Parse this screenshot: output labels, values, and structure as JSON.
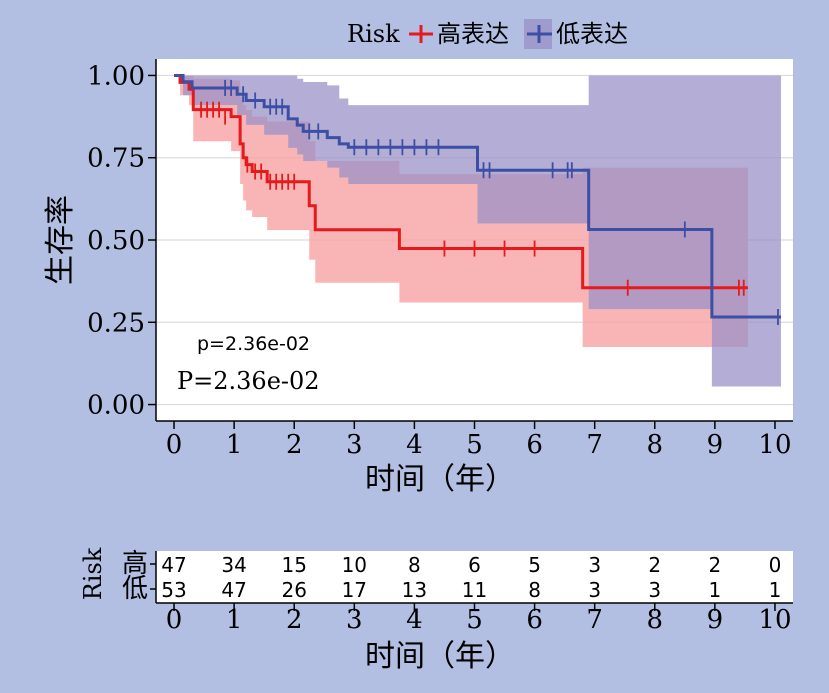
{
  "chart_data": {
    "type": "line",
    "subtype": "kaplan-meier",
    "legend": {
      "title": "Risk",
      "position": "top",
      "entries": [
        {
          "label": "高表达",
          "color": "#e41a1c"
        },
        {
          "label": "低表达",
          "color": "#3c4fa4"
        }
      ]
    },
    "ylabel": "生存率",
    "xlabel": "时间（年）",
    "xlim": [
      -0.3,
      10.3
    ],
    "ylim": [
      -0.05,
      1.05
    ],
    "xticks": [
      0,
      1,
      2,
      3,
      4,
      5,
      6,
      7,
      8,
      9,
      10
    ],
    "xtick_labels": [
      "0",
      "1",
      "2",
      "3",
      "4",
      "5",
      "6",
      "7",
      "8",
      "9",
      "10"
    ],
    "yticks": [
      0,
      0.25,
      0.5,
      0.75,
      1.0
    ],
    "ytick_labels": [
      "0.00",
      "0.25",
      "0.50",
      "0.75",
      "1.00"
    ],
    "grid": true,
    "annotations": [
      "p=2.36e-02",
      "P=2.36e-02"
    ],
    "series": [
      {
        "name": "高表达",
        "color": "#e41a1c",
        "fill": "#f8a8a8",
        "steps": [
          [
            0,
            1.0
          ],
          [
            0.1,
            0.979
          ],
          [
            0.25,
            0.958
          ],
          [
            0.32,
            0.896
          ],
          [
            0.95,
            0.875
          ],
          [
            1.1,
            0.792
          ],
          [
            1.15,
            0.75
          ],
          [
            1.2,
            0.729
          ],
          [
            1.3,
            0.708
          ],
          [
            1.55,
            0.677
          ],
          [
            2.25,
            0.604
          ],
          [
            2.35,
            0.531
          ],
          [
            3.75,
            0.474
          ],
          [
            6.8,
            0.355
          ],
          [
            9.55,
            0.355
          ]
        ],
        "upper": [
          [
            0,
            1.0
          ],
          [
            0.1,
            1.0
          ],
          [
            0.25,
            1.0
          ],
          [
            0.32,
            0.99
          ],
          [
            0.95,
            0.985
          ],
          [
            1.1,
            0.935
          ],
          [
            1.15,
            0.91
          ],
          [
            1.2,
            0.895
          ],
          [
            1.3,
            0.875
          ],
          [
            1.55,
            0.86
          ],
          [
            2.25,
            0.8
          ],
          [
            2.35,
            0.74
          ],
          [
            3.75,
            0.7
          ],
          [
            6.8,
            0.72
          ],
          [
            9.55,
            0.72
          ]
        ],
        "lower": [
          [
            0,
            1.0
          ],
          [
            0.1,
            0.94
          ],
          [
            0.25,
            0.91
          ],
          [
            0.32,
            0.8
          ],
          [
            0.95,
            0.77
          ],
          [
            1.1,
            0.67
          ],
          [
            1.15,
            0.62
          ],
          [
            1.2,
            0.59
          ],
          [
            1.3,
            0.57
          ],
          [
            1.55,
            0.53
          ],
          [
            2.25,
            0.44
          ],
          [
            2.35,
            0.37
          ],
          [
            3.75,
            0.31
          ],
          [
            6.8,
            0.175
          ],
          [
            9.55,
            0.175
          ]
        ],
        "censors": [
          [
            0.45,
            0.896
          ],
          [
            0.55,
            0.896
          ],
          [
            0.65,
            0.896
          ],
          [
            0.75,
            0.896
          ],
          [
            0.85,
            0.875
          ],
          [
            1.22,
            0.729
          ],
          [
            1.35,
            0.708
          ],
          [
            1.45,
            0.708
          ],
          [
            1.6,
            0.677
          ],
          [
            1.7,
            0.677
          ],
          [
            1.8,
            0.677
          ],
          [
            1.9,
            0.677
          ],
          [
            2.0,
            0.677
          ],
          [
            4.5,
            0.474
          ],
          [
            5.0,
            0.474
          ],
          [
            5.5,
            0.474
          ],
          [
            6.0,
            0.474
          ],
          [
            7.55,
            0.355
          ],
          [
            9.4,
            0.355
          ],
          [
            9.48,
            0.355
          ]
        ]
      },
      {
        "name": "低表达",
        "color": "#3c4fa4",
        "fill": "#9b92c8",
        "steps": [
          [
            0,
            1.0
          ],
          [
            0.15,
            0.981
          ],
          [
            0.3,
            0.962
          ],
          [
            1.05,
            0.943
          ],
          [
            1.2,
            0.924
          ],
          [
            1.5,
            0.905
          ],
          [
            1.9,
            0.868
          ],
          [
            2.05,
            0.849
          ],
          [
            2.15,
            0.83
          ],
          [
            2.55,
            0.811
          ],
          [
            2.75,
            0.792
          ],
          [
            2.9,
            0.782
          ],
          [
            5.05,
            0.712
          ],
          [
            6.9,
            0.532
          ],
          [
            8.95,
            0.266
          ],
          [
            10.1,
            0.266
          ]
        ],
        "upper": [
          [
            0,
            1.0
          ],
          [
            0.15,
            1.0
          ],
          [
            0.3,
            1.0
          ],
          [
            1.05,
            1.0
          ],
          [
            1.2,
            1.0
          ],
          [
            1.5,
            1.0
          ],
          [
            1.9,
            1.0
          ],
          [
            2.05,
            0.99
          ],
          [
            2.15,
            0.98
          ],
          [
            2.55,
            0.97
          ],
          [
            2.75,
            0.93
          ],
          [
            2.9,
            0.91
          ],
          [
            5.05,
            0.91
          ],
          [
            6.9,
            1.0
          ],
          [
            8.95,
            1.0
          ],
          [
            10.1,
            1.0
          ]
        ],
        "lower": [
          [
            0,
            1.0
          ],
          [
            0.15,
            0.94
          ],
          [
            0.3,
            0.91
          ],
          [
            1.05,
            0.88
          ],
          [
            1.2,
            0.85
          ],
          [
            1.5,
            0.82
          ],
          [
            1.9,
            0.78
          ],
          [
            2.05,
            0.76
          ],
          [
            2.15,
            0.74
          ],
          [
            2.55,
            0.72
          ],
          [
            2.75,
            0.69
          ],
          [
            2.9,
            0.67
          ],
          [
            5.05,
            0.55
          ],
          [
            6.9,
            0.29
          ],
          [
            8.95,
            0.055
          ],
          [
            10.1,
            0.055
          ]
        ],
        "censors": [
          [
            0.85,
            0.962
          ],
          [
            0.95,
            0.962
          ],
          [
            1.15,
            0.943
          ],
          [
            1.35,
            0.924
          ],
          [
            1.6,
            0.905
          ],
          [
            1.7,
            0.905
          ],
          [
            1.8,
            0.905
          ],
          [
            2.25,
            0.83
          ],
          [
            2.4,
            0.83
          ],
          [
            3.0,
            0.782
          ],
          [
            3.2,
            0.782
          ],
          [
            3.4,
            0.782
          ],
          [
            3.6,
            0.782
          ],
          [
            3.8,
            0.782
          ],
          [
            4.0,
            0.782
          ],
          [
            4.2,
            0.782
          ],
          [
            4.4,
            0.782
          ],
          [
            5.15,
            0.712
          ],
          [
            5.25,
            0.712
          ],
          [
            6.3,
            0.712
          ],
          [
            6.55,
            0.712
          ],
          [
            6.62,
            0.712
          ],
          [
            8.5,
            0.532
          ],
          [
            10.05,
            0.266
          ]
        ]
      }
    ]
  },
  "risk_table": {
    "ylabel": "Risk",
    "xlabel": "时间（年）",
    "rows": [
      {
        "label": "高",
        "color": "#e41a1c",
        "values": [
          "47",
          "34",
          "15",
          "10",
          "8",
          "6",
          "5",
          "3",
          "2",
          "2",
          "0"
        ]
      },
      {
        "label": "低",
        "color": "#3c4fa4",
        "values": [
          "53",
          "47",
          "26",
          "17",
          "13",
          "11",
          "8",
          "3",
          "3",
          "1",
          "1"
        ]
      }
    ]
  }
}
